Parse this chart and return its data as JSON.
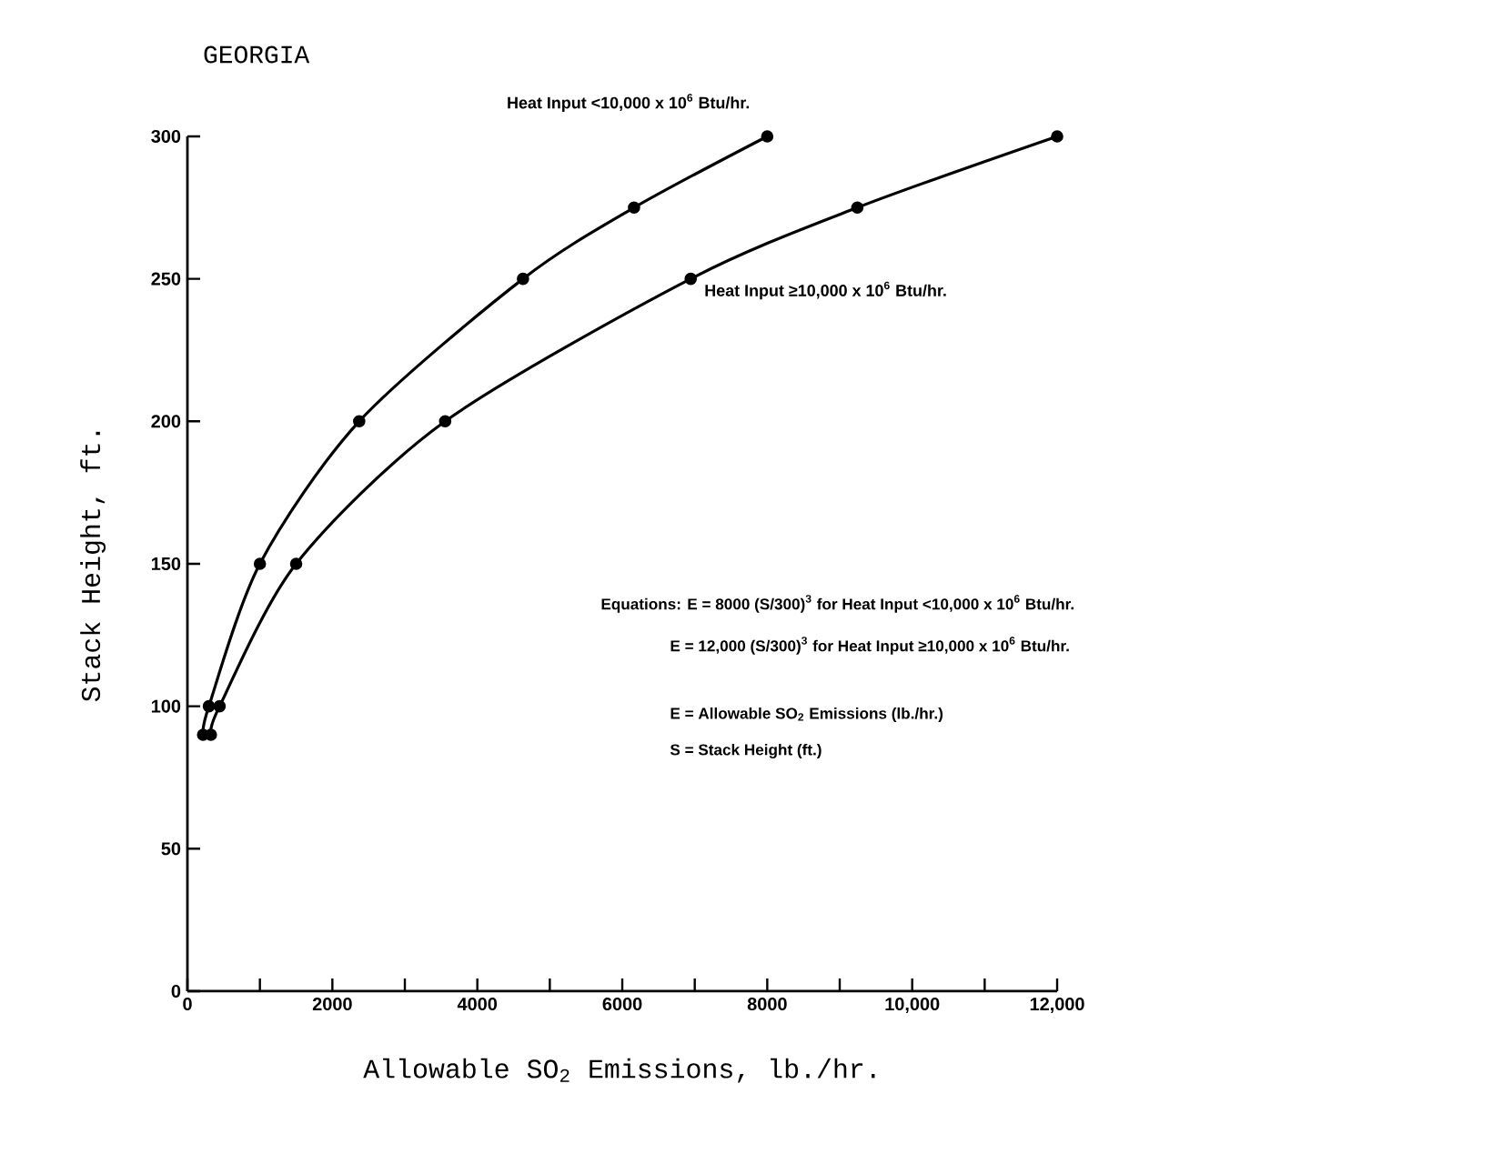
{
  "chart_data": {
    "type": "line",
    "title": "GEORGIA",
    "xlabel": "Allowable SO$_{2}$ Emissions, lb./hr.",
    "ylabel": "Stack Height, ft.",
    "series": [
      {
        "name": "Heat Input <10,000 x 10$^{6}$ Btu/hr.",
        "color": "#000000",
        "x": [
          216,
          296,
          1000,
          2370,
          4630,
          6162,
          8000
        ],
        "values": [
          90,
          100,
          150,
          200,
          250,
          275,
          300
        ]
      },
      {
        "name": "Heat Input ≥10,000 x 10$^{6}$ Btu/hr.",
        "color": "#000000",
        "x": [
          324,
          444,
          1500,
          3556,
          6944,
          9243,
          12000
        ],
        "values": [
          90,
          100,
          150,
          200,
          250,
          275,
          300
        ]
      }
    ],
    "xlim": [
      0,
      12000
    ],
    "ylim": [
      0,
      300
    ],
    "xticks": [
      0,
      {
        "value": 1000,
        "label": null
      },
      2000,
      {
        "value": 3000,
        "label": null
      },
      4000,
      {
        "value": 5000,
        "label": null
      },
      6000,
      {
        "value": 7000,
        "label": null
      },
      8000,
      {
        "value": 9000,
        "label": null
      },
      {
        "value": 10000,
        "label": "10,000"
      },
      {
        "value": 11000,
        "label": null
      },
      {
        "value": 12000,
        "label": "12,000"
      }
    ],
    "yticks": [
      0,
      50,
      100,
      150,
      200,
      250,
      300
    ],
    "marker": "circle",
    "line_style": "solid",
    "grid": false,
    "annotations": [
      "Equations: E = 8000 (S/300)$^{3}$ for Heat Input <10,000 x 10$^{6}$ Btu/hr.",
      "E = 12,000 (S/300)$^{3}$ for Heat Input ≥10,000 x 10$^{6}$ Btu/hr.",
      "E = Allowable SO$_{2}$ Emissions (lb./hr.)",
      "S = Stack Height (ft.)"
    ]
  }
}
